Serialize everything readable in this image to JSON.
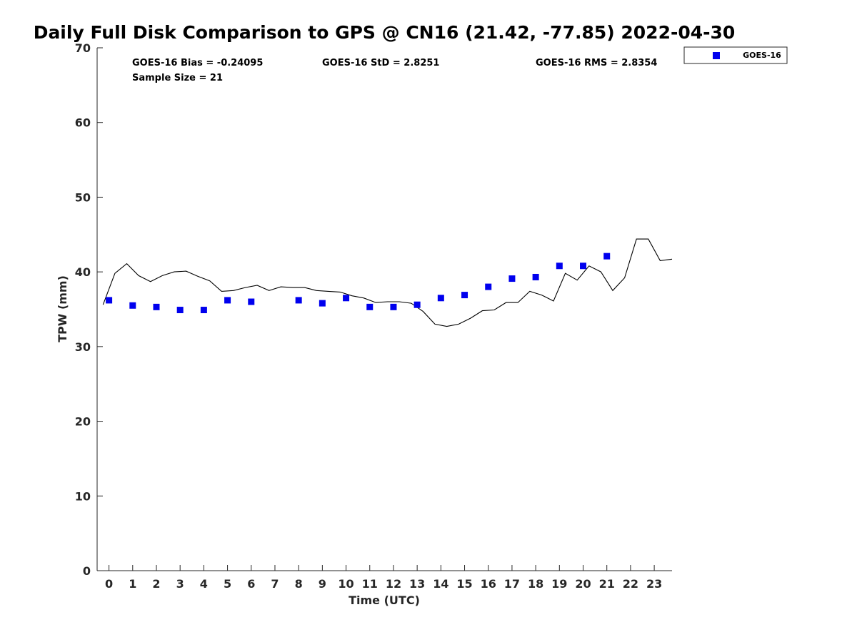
{
  "chart_data": {
    "type": "scatter",
    "title": "Daily Full Disk Comparison to GPS @ CN16 (21.42, -77.85) 2022-04-30",
    "xlabel": "Time (UTC)",
    "ylabel": "TPW (mm)",
    "xlim": [
      -0.5,
      23.75
    ],
    "ylim": [
      0,
      70
    ],
    "x_ticks": [
      0,
      1,
      2,
      3,
      4,
      5,
      6,
      7,
      8,
      9,
      10,
      11,
      12,
      13,
      14,
      15,
      16,
      17,
      18,
      19,
      20,
      21,
      22,
      23
    ],
    "x_tick_labels": [
      "0",
      "1",
      "2",
      "3",
      "4",
      "5",
      "6",
      "7",
      "8",
      "9",
      "10",
      "11",
      "12",
      "13",
      "14",
      "15",
      "16",
      "17",
      "18",
      "19",
      "20",
      "21",
      "22",
      "23"
    ],
    "y_ticks": [
      0,
      10,
      20,
      30,
      40,
      50,
      60,
      70
    ],
    "y_tick_labels": [
      "0",
      "10",
      "20",
      "30",
      "40",
      "50",
      "60",
      "70"
    ],
    "grid": false,
    "legend_position": "outside-top-right",
    "stats": {
      "bias": "GOES-16 Bias = -0.24095",
      "std": "GOES-16 StD = 2.8251",
      "rms": "GOES-16 RMS = 2.8354",
      "sample": "Sample Size = 21"
    },
    "series": [
      {
        "name": "GOES-16",
        "kind": "scatter",
        "marker": "square",
        "color": "#0000ee",
        "x": [
          0,
          1,
          2,
          3,
          4,
          5,
          6,
          8,
          9,
          10,
          11,
          12,
          13,
          14,
          15,
          16,
          17,
          18,
          19,
          20,
          21
        ],
        "y": [
          36.2,
          35.5,
          35.3,
          34.9,
          34.9,
          36.2,
          36.0,
          36.2,
          35.8,
          36.5,
          35.3,
          35.3,
          35.6,
          36.5,
          36.9,
          38.0,
          39.1,
          39.3,
          40.8,
          40.8,
          42.1
        ]
      },
      {
        "kind": "line",
        "color": "#000000",
        "x": [
          -0.25,
          0.25,
          0.75,
          1.25,
          1.75,
          2.25,
          2.75,
          3.25,
          3.75,
          4.25,
          4.75,
          5.25,
          5.75,
          6.25,
          6.75,
          7.25,
          7.75,
          8.25,
          8.75,
          9.25,
          9.75,
          10.25,
          10.75,
          11.25,
          11.75,
          12.25,
          12.75,
          13.25,
          13.75,
          14.25,
          14.75,
          15.25,
          15.75,
          16.25,
          16.75,
          17.25,
          17.75,
          18.25,
          18.75,
          19.25,
          19.75,
          20.25,
          20.75,
          21.25,
          21.75,
          22.25,
          22.75,
          23.25,
          23.75
        ],
        "y": [
          35.6,
          39.8,
          41.1,
          39.5,
          38.7,
          39.5,
          40.0,
          40.1,
          39.4,
          38.8,
          37.4,
          37.5,
          37.9,
          38.2,
          37.5,
          38.0,
          37.9,
          37.9,
          37.5,
          37.4,
          37.3,
          36.8,
          36.5,
          35.9,
          36.0,
          36.0,
          35.8,
          34.7,
          33.0,
          32.7,
          33.0,
          33.8,
          34.8,
          34.9,
          35.9,
          35.9,
          37.4,
          36.9,
          36.1,
          39.8,
          38.9,
          40.8,
          40.0,
          37.5,
          39.2,
          44.4,
          44.4,
          41.5,
          41.7
        ]
      }
    ]
  }
}
